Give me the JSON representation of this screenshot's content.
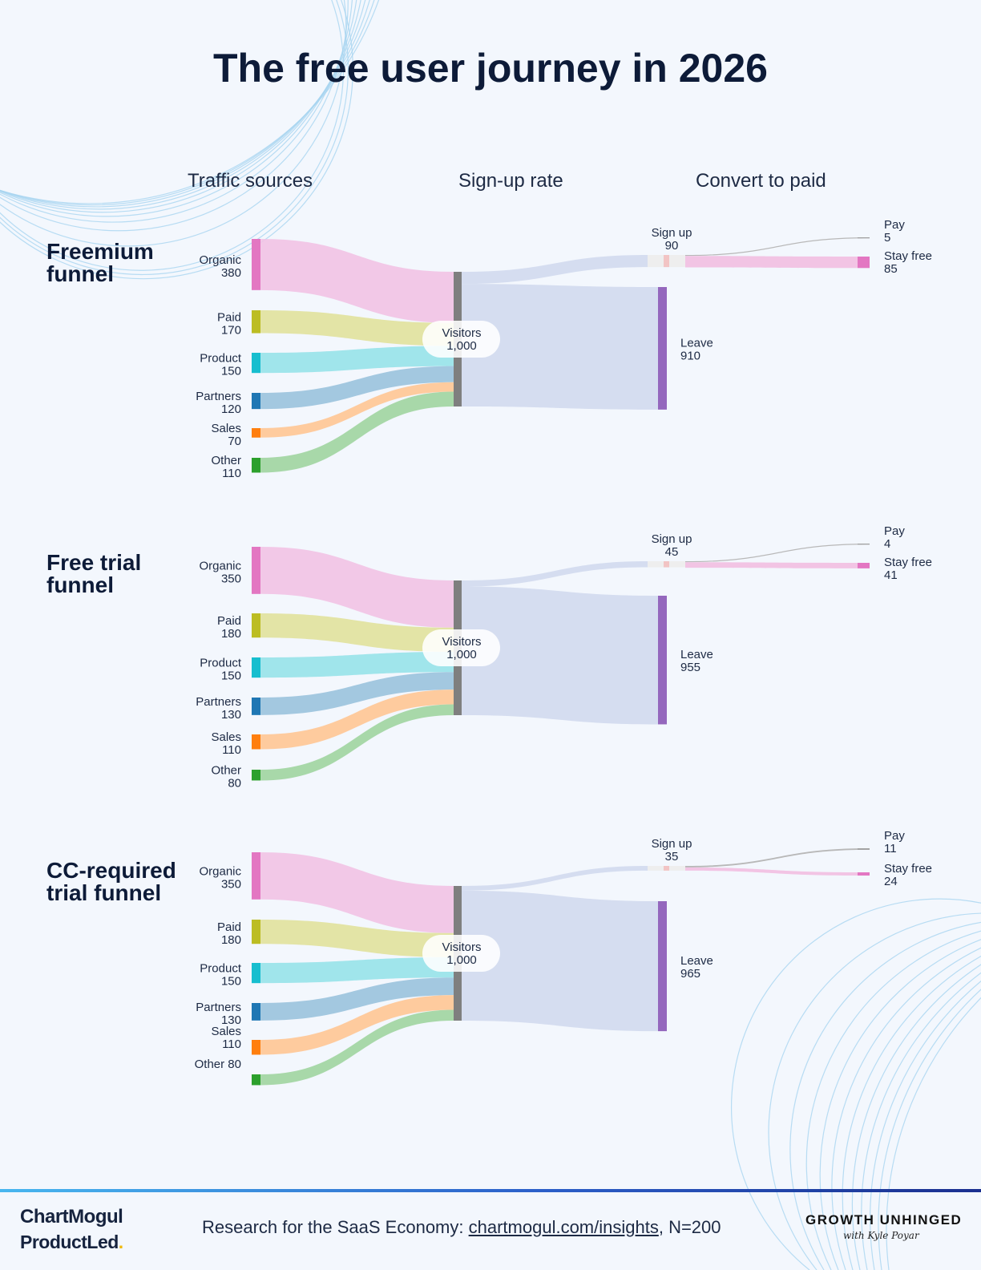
{
  "title": "The free user journey in 2026",
  "column_headers": [
    "Traffic sources",
    "Sign-up rate",
    "Convert to paid"
  ],
  "colors": {
    "Organic": "#e377c2",
    "Paid": "#bcbd22",
    "Product": "#17becf",
    "Partners": "#1f77b4",
    "Sales": "#ff7f0e",
    "Other": "#2ca02c",
    "Visitors": "#7f7f7f",
    "Sign up": "#f7b6d2",
    "Leave": "#9467bd",
    "Pay": "#a0a0a0",
    "Stay free": "#e377c2"
  },
  "chart_data": [
    {
      "type": "sankey",
      "title": "Freemium funnel",
      "sources": [
        {
          "name": "Organic",
          "value": 380
        },
        {
          "name": "Paid",
          "value": 170
        },
        {
          "name": "Product",
          "value": 150
        },
        {
          "name": "Partners",
          "value": 120
        },
        {
          "name": "Sales",
          "value": 70
        },
        {
          "name": "Other",
          "value": 110
        }
      ],
      "visitors": {
        "name": "Visitors",
        "value": "1,000"
      },
      "signup": {
        "name": "Sign up",
        "value": 90
      },
      "leave": {
        "name": "Leave",
        "value": 910
      },
      "pay": {
        "name": "Pay",
        "value": 5
      },
      "stay_free": {
        "name": "Stay free",
        "value": 85
      }
    },
    {
      "type": "sankey",
      "title": "Free trial funnel",
      "sources": [
        {
          "name": "Organic",
          "value": 350
        },
        {
          "name": "Paid",
          "value": 180
        },
        {
          "name": "Product",
          "value": 150
        },
        {
          "name": "Partners",
          "value": 130
        },
        {
          "name": "Sales",
          "value": 110
        },
        {
          "name": "Other",
          "value": 80
        }
      ],
      "visitors": {
        "name": "Visitors",
        "value": "1,000"
      },
      "signup": {
        "name": "Sign up",
        "value": 45
      },
      "leave": {
        "name": "Leave",
        "value": 955
      },
      "pay": {
        "name": "Pay",
        "value": 4
      },
      "stay_free": {
        "name": "Stay free",
        "value": 41
      }
    },
    {
      "type": "sankey",
      "title": "CC-required trial funnel",
      "sources": [
        {
          "name": "Organic",
          "value": 350
        },
        {
          "name": "Paid",
          "value": 180
        },
        {
          "name": "Product",
          "value": 150
        },
        {
          "name": "Partners",
          "value": 130
        },
        {
          "name": "Sales",
          "value": 110
        },
        {
          "name": "Other",
          "value": 80
        }
      ],
      "visitors": {
        "name": "Visitors",
        "value": "1,000"
      },
      "signup": {
        "name": "Sign up",
        "value": 35
      },
      "leave": {
        "name": "Leave",
        "value": 965
      },
      "pay": {
        "name": "Pay",
        "value": 11
      },
      "stay_free": {
        "name": "Stay free",
        "value": 24
      }
    }
  ],
  "footer": {
    "brand1": "ChartMogul",
    "brand2": "ProductLed",
    "note_prefix": "Research for the SaaS Economy: ",
    "note_link": "chartmogul.com/insights",
    "note_suffix": ", N=200",
    "right_brand": "GROWTH UNHINGED",
    "right_brand_sub": "with Kyle Poyar"
  }
}
